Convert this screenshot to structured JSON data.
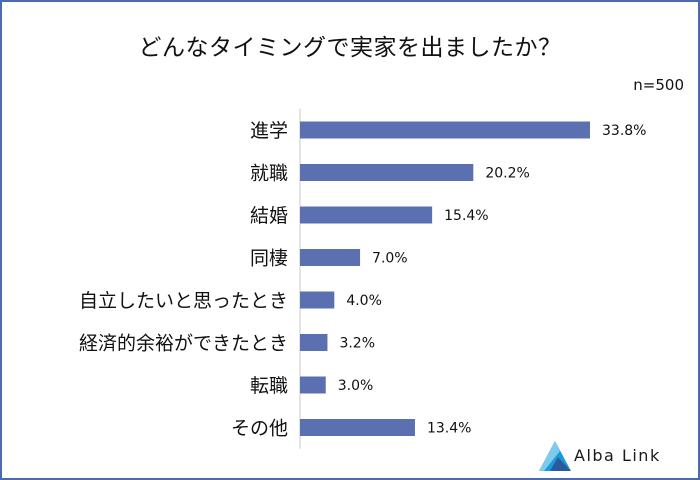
{
  "chart_data": {
    "type": "bar",
    "orientation": "horizontal",
    "title": "どんなタイミングで実家を出ましたか？",
    "sample_size": "n=500",
    "categories": [
      "進学",
      "就職",
      "結婚",
      "同棲",
      "自立したいと思ったとき",
      "経済的余裕ができたとき",
      "転職",
      "その他"
    ],
    "values": [
      33.8,
      20.2,
      15.4,
      7.0,
      4.0,
      3.2,
      3.0,
      13.4
    ],
    "value_labels": [
      "33.8%",
      "20.2%",
      "15.4%",
      "7.0%",
      "4.0%",
      "3.2%",
      "3.0%",
      "13.4%"
    ],
    "xlim": [
      0,
      33.8
    ],
    "grid": false,
    "legend": "none",
    "bar_color": "#5b70b0",
    "axis_color": "#c8c8c8"
  },
  "brand": {
    "name": "Alba Link",
    "logo_icon": "triangle-logo-icon",
    "colors": [
      "#1a9ad8",
      "#2c5a9e"
    ]
  },
  "frame_color": "#4a6bb0"
}
